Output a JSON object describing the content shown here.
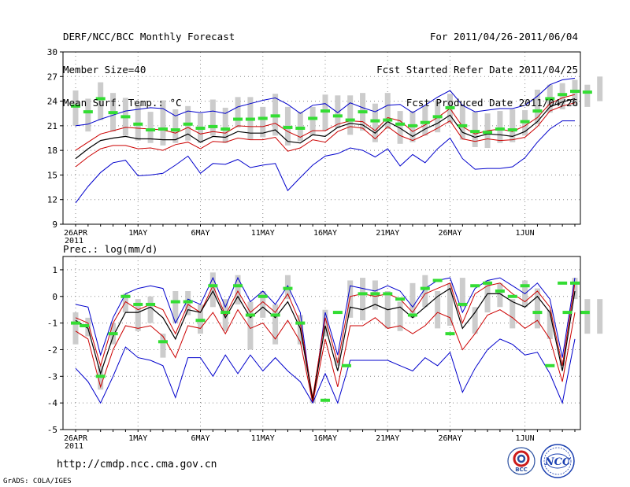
{
  "header": {
    "left": [
      "DERF/NCC/BCC Monthly Forecast",
      "Member Size=40",
      "Mean Surf. Temp.: °C"
    ],
    "right": [
      "For 2011/04/26-2011/06/04",
      "Fcst Started Refer Date 2011/04/25",
      "Fcst Produced Date 2011/04/26"
    ]
  },
  "footer": {
    "url": "http://cmdp.ncc.cma.gov.cn",
    "credit": "GrADS: COLA/IGES",
    "logo_bcc": "BCC",
    "logo_ncc": "NCC"
  },
  "colors": {
    "max_min": "#0000cc",
    "mean": "#000000",
    "std": "#cc0000",
    "observed": "#33dd33",
    "box": "#cccccc",
    "grid": "#888888"
  },
  "chart_data": [
    {
      "type": "line",
      "title": "Mean Surf. Temp.: °C",
      "ylim": [
        9,
        30
      ],
      "yticks": [
        9,
        12,
        15,
        18,
        21,
        24,
        27,
        30
      ],
      "x_tick_labels": [
        {
          "day": 0,
          "label": "26APR",
          "sub": "2011"
        },
        {
          "day": 5,
          "label": "1MAY"
        },
        {
          "day": 10,
          "label": "6MAY"
        },
        {
          "day": 15,
          "label": "11MAY"
        },
        {
          "day": 20,
          "label": "16MAY"
        },
        {
          "day": 25,
          "label": "21MAY"
        },
        {
          "day": 30,
          "label": "26MAY"
        },
        {
          "day": 36,
          "label": "1JUN"
        }
      ],
      "days": 40,
      "series": [
        {
          "name": "max",
          "values": [
            21.0,
            21.2,
            21.8,
            22.3,
            22.8,
            23.0,
            23.2,
            23.1,
            22.2,
            22.8,
            22.6,
            22.8,
            22.5,
            23.3,
            23.7,
            24.1,
            24.4,
            23.6,
            22.5,
            23.5,
            23.7,
            22.6,
            23.8,
            23.2,
            22.7,
            23.5,
            23.6,
            22.6,
            23.5,
            24.5,
            25.3,
            23.5,
            22.7,
            22.9,
            23.1,
            23.1,
            23.5,
            24.6,
            26.0,
            26.6,
            26.8,
            27.2,
            27.9
          ]
        },
        {
          "name": "std_hi",
          "values": [
            18.0,
            19.0,
            20.0,
            20.4,
            20.8,
            20.7,
            20.6,
            20.5,
            20.1,
            20.8,
            20.0,
            20.3,
            20.1,
            21.0,
            20.9,
            20.9,
            21.3,
            20.3,
            19.6,
            20.4,
            20.4,
            21.2,
            21.6,
            21.5,
            20.4,
            22.0,
            21.6,
            20.3,
            21.1,
            22.0,
            23.1,
            20.9,
            20.0,
            20.4,
            20.6,
            20.3,
            21.0,
            22.0,
            23.7,
            24.4,
            24.8,
            24.9,
            25.6
          ]
        },
        {
          "name": "mean",
          "values": [
            17.0,
            18.2,
            19.2,
            19.5,
            19.7,
            19.4,
            19.4,
            19.3,
            19.3,
            20.0,
            19.0,
            19.7,
            19.6,
            20.3,
            20.1,
            20.1,
            20.5,
            19.1,
            18.9,
            19.9,
            19.7,
            20.8,
            21.3,
            21.1,
            20.1,
            21.5,
            20.7,
            19.7,
            20.6,
            21.3,
            22.3,
            20.2,
            19.6,
            20.0,
            19.9,
            19.7,
            20.3,
            21.5,
            23.3,
            23.9,
            24.3,
            24.2,
            25.0
          ]
        },
        {
          "name": "std_lo",
          "values": [
            16.0,
            17.2,
            18.2,
            18.6,
            18.6,
            18.2,
            18.3,
            18.0,
            18.7,
            19.0,
            18.2,
            19.1,
            19.0,
            19.5,
            19.3,
            19.3,
            19.6,
            17.9,
            18.3,
            19.3,
            19.0,
            20.3,
            20.9,
            20.7,
            19.4,
            20.9,
            19.8,
            19.2,
            19.9,
            20.7,
            21.6,
            19.4,
            19.1,
            19.4,
            19.2,
            19.3,
            19.6,
            20.9,
            22.8,
            23.4,
            23.8,
            23.4,
            24.3
          ]
        },
        {
          "name": "min",
          "values": [
            11.6,
            13.6,
            15.3,
            16.5,
            16.8,
            14.9,
            15.0,
            15.2,
            16.2,
            17.3,
            15.2,
            16.4,
            16.3,
            16.9,
            15.9,
            16.2,
            16.4,
            13.1,
            14.7,
            16.2,
            17.3,
            17.6,
            18.3,
            18.0,
            17.2,
            18.2,
            16.1,
            17.5,
            16.5,
            18.2,
            19.5,
            17.0,
            15.7,
            15.8,
            15.8,
            16.0,
            17.1,
            19.0,
            20.6,
            21.6,
            21.6,
            21.3,
            21.9
          ]
        },
        {
          "name": "observed",
          "values": [
            23.4,
            22.7,
            24.3,
            22.6,
            22.1,
            21.2,
            20.5,
            20.6,
            20.5,
            21.2,
            20.7,
            20.9,
            20.6,
            21.8,
            21.8,
            21.9,
            22.2,
            20.8,
            20.7,
            21.9,
            22.8,
            22.2,
            21.7,
            22.7,
            21.6,
            21.7,
            21.2,
            21.0,
            21.4,
            22.1,
            23.2,
            21.0,
            20.3,
            20.2,
            20.6,
            20.5,
            21.5,
            22.8,
            24.3,
            24.8,
            25.2,
            25.1,
            25.8
          ]
        }
      ],
      "boxes": [
        [
          21.0,
          25.3
        ],
        [
          20.3,
          24.3
        ],
        [
          21.7,
          26.3
        ],
        [
          20.3,
          25.0
        ],
        [
          19.8,
          24.4
        ],
        [
          19.2,
          23.6
        ],
        [
          18.9,
          22.7
        ],
        [
          18.6,
          24.1
        ],
        [
          18.9,
          23.0
        ],
        [
          19.2,
          23.4
        ],
        [
          18.9,
          22.5
        ],
        [
          19.8,
          24.2
        ],
        [
          18.9,
          23.2
        ],
        [
          20.8,
          24.5
        ],
        [
          19.3,
          24.5
        ],
        [
          19.6,
          23.3
        ],
        [
          19.8,
          24.9
        ],
        [
          18.6,
          23.3
        ],
        [
          19.1,
          22.7
        ],
        [
          19.8,
          23.3
        ],
        [
          20.4,
          24.8
        ],
        [
          20.7,
          24.7
        ],
        [
          19.9,
          24.7
        ],
        [
          20.4,
          25.0
        ],
        [
          19.0,
          23.7
        ],
        [
          20.6,
          25.0
        ],
        [
          18.8,
          22.8
        ],
        [
          19.0,
          22.8
        ],
        [
          19.8,
          23.5
        ],
        [
          20.2,
          24.1
        ],
        [
          21.3,
          24.9
        ],
        [
          19.3,
          23.5
        ],
        [
          18.4,
          22.7
        ],
        [
          18.3,
          22.5
        ],
        [
          18.9,
          22.8
        ],
        [
          19.0,
          23.0
        ],
        [
          19.8,
          22.9
        ],
        [
          21.2,
          25.4
        ],
        [
          22.6,
          26.0
        ],
        [
          23.0,
          26.2
        ],
        [
          23.4,
          26.6
        ],
        [
          23.3,
          26.0
        ],
        [
          24.0,
          27.0
        ]
      ]
    },
    {
      "type": "line",
      "title": "Prec.: log(mm/d)",
      "ylim": [
        -5,
        1.5
      ],
      "yticks": [
        -5,
        -4,
        -3,
        -2,
        -1,
        0,
        1
      ],
      "x_tick_labels": [
        {
          "day": 0,
          "label": "26APR",
          "sub": "2011"
        },
        {
          "day": 5,
          "label": "1MAY"
        },
        {
          "day": 10,
          "label": "6MAY"
        },
        {
          "day": 15,
          "label": "11MAY"
        },
        {
          "day": 20,
          "label": "16MAY"
        },
        {
          "day": 25,
          "label": "21MAY"
        },
        {
          "day": 30,
          "label": "26MAY"
        },
        {
          "day": 36,
          "label": "1JUN"
        }
      ],
      "days": 40,
      "series": [
        {
          "name": "max",
          "values": [
            -0.3,
            -0.4,
            -2.2,
            -0.8,
            0.1,
            0.3,
            0.4,
            0.3,
            -1.0,
            -0.1,
            -0.3,
            0.7,
            -0.4,
            0.7,
            -0.2,
            0.2,
            -0.3,
            0.4,
            -0.6,
            -4.0,
            -0.6,
            -2.2,
            0.4,
            0.3,
            0.2,
            0.4,
            0.2,
            -0.4,
            0.3,
            0.6,
            0.7,
            -0.6,
            0.3,
            0.6,
            0.7,
            0.4,
            0.1,
            0.5,
            -0.1,
            -2.3,
            0.7,
            -0.3,
            0.6
          ]
        },
        {
          "name": "std_hi",
          "values": [
            -0.8,
            -1.0,
            -2.6,
            -1.0,
            -0.2,
            -0.5,
            -0.3,
            -0.5,
            -1.4,
            -0.3,
            -0.6,
            0.4,
            -0.7,
            0.2,
            -0.6,
            -0.2,
            -0.6,
            0.1,
            -1.0,
            -3.8,
            -0.8,
            -2.5,
            0.0,
            0.1,
            0.0,
            0.1,
            -0.1,
            -0.6,
            0.1,
            0.3,
            0.5,
            -1.0,
            0.1,
            0.4,
            0.5,
            0.1,
            -0.2,
            0.2,
            -0.4,
            -2.6,
            0.5,
            -0.5,
            0.3
          ]
        },
        {
          "name": "mean",
          "values": [
            -0.9,
            -1.2,
            -2.9,
            -1.5,
            -0.6,
            -0.6,
            -0.4,
            -0.8,
            -1.6,
            -0.5,
            -0.6,
            0.2,
            -0.8,
            0.0,
            -0.8,
            -0.4,
            -0.8,
            -0.2,
            -1.2,
            -3.9,
            -1.1,
            -2.8,
            -0.4,
            -0.5,
            -0.3,
            -0.5,
            -0.4,
            -0.8,
            -0.4,
            0.0,
            0.3,
            -1.2,
            -0.6,
            0.1,
            0.1,
            -0.2,
            -0.4,
            0.0,
            -0.6,
            -2.8,
            0.2,
            -0.7,
            0.0
          ]
        },
        {
          "name": "std_lo",
          "values": [
            -1.3,
            -1.6,
            -3.4,
            -2.0,
            -1.1,
            -1.2,
            -1.1,
            -1.5,
            -2.3,
            -1.1,
            -1.2,
            -0.6,
            -1.4,
            -0.5,
            -1.2,
            -1.0,
            -1.6,
            -0.9,
            -1.7,
            -4.0,
            -1.6,
            -3.4,
            -1.1,
            -1.1,
            -0.8,
            -1.2,
            -1.1,
            -1.4,
            -1.1,
            -0.6,
            -0.8,
            -2.0,
            -1.4,
            -0.7,
            -0.5,
            -0.8,
            -1.2,
            -0.9,
            -1.6,
            -3.2,
            -0.6,
            -1.2,
            -1.4
          ]
        },
        {
          "name": "min",
          "values": [
            -2.7,
            -3.2,
            -4.0,
            -3.0,
            -1.9,
            -2.3,
            -2.4,
            -2.6,
            -3.8,
            -2.3,
            -2.3,
            -3.0,
            -2.2,
            -2.9,
            -2.2,
            -2.8,
            -2.3,
            -2.8,
            -3.2,
            -4.0,
            -2.9,
            -4.0,
            -2.4,
            -2.4,
            -2.4,
            -2.4,
            -2.6,
            -2.8,
            -2.3,
            -2.6,
            -2.1,
            -3.6,
            -2.7,
            -2.0,
            -1.6,
            -1.8,
            -2.2,
            -2.1,
            -2.9,
            -4.0,
            -1.6,
            -1.8,
            -2.4
          ]
        },
        {
          "name": "observed",
          "values": [
            -1.0,
            -1.1,
            -3.0,
            -1.4,
            0.0,
            -0.3,
            -0.3,
            -1.7,
            -0.2,
            -0.2,
            -0.9,
            0.4,
            -0.6,
            0.4,
            -0.7,
            0.0,
            -0.7,
            0.3,
            -1.0,
            -3.9,
            -0.6,
            -2.6,
            0.1,
            0.1,
            0.1,
            -0.1,
            -0.7,
            0.3,
            0.6,
            -1.4,
            -0.3,
            0.4,
            0.5,
            0.2,
            0.0,
            0.4,
            -0.6,
            -2.6,
            0.5,
            -0.6,
            0.5,
            -0.6,
            -0.6
          ]
        },
        {
          "name": "obs_days",
          "values": [
            0,
            0.7,
            2,
            3,
            4,
            5,
            6,
            7,
            8,
            9,
            10,
            11,
            12,
            13,
            14,
            15,
            16,
            17,
            18,
            20,
            21,
            21.7,
            23,
            24,
            25,
            26,
            27,
            28,
            29,
            30,
            31,
            32,
            33,
            34,
            35,
            36,
            37,
            38,
            39,
            39.4,
            40,
            40.8,
            40.8
          ]
        }
      ],
      "boxes": [
        [
          -1.8,
          -0.6
        ],
        [
          -1.5,
          -0.8
        ],
        [
          -3.5,
          -2.6
        ],
        [
          -1.8,
          -1.0
        ],
        [
          -0.6,
          0.1
        ],
        [
          -1.3,
          -0.1
        ],
        [
          -1.0,
          0.0
        ],
        [
          -2.3,
          -1.4
        ],
        [
          -1.0,
          0.2
        ],
        [
          -0.7,
          0.2
        ],
        [
          -1.4,
          -0.3
        ],
        [
          -0.4,
          0.9
        ],
        [
          -1.3,
          -0.1
        ],
        [
          -0.3,
          0.8
        ],
        [
          -2.0,
          -0.2
        ],
        [
          -0.8,
          0.2
        ],
        [
          -1.8,
          -0.3
        ],
        [
          -0.1,
          0.8
        ],
        [
          -1.8,
          -0.7
        ],
        [
          -4.0,
          -3.8
        ],
        [
          -1.5,
          -0.5
        ],
        [
          -2.6,
          -2.3
        ],
        [
          -0.8,
          0.6
        ],
        [
          -0.9,
          0.7
        ],
        [
          -0.5,
          0.6
        ],
        [
          -1.2,
          0.2
        ],
        [
          -1.3,
          -0.2
        ],
        [
          -0.8,
          0.5
        ],
        [
          -0.4,
          0.8
        ],
        [
          -1.2,
          0.2
        ],
        [
          -1.1,
          0.5
        ],
        [
          -0.4,
          0.7
        ],
        [
          -1.4,
          -0.4
        ],
        [
          -0.6,
          0.6
        ],
        [
          -0.4,
          0.5
        ],
        [
          -1.2,
          -0.1
        ],
        [
          -0.4,
          0.6
        ],
        [
          -1.2,
          0.3
        ],
        [
          -1.6,
          -0.5
        ],
        [
          -2.6,
          -2.4
        ],
        [
          -0.1,
          0.7
        ],
        [
          -1.4,
          -0.1
        ],
        [
          -1.4,
          -0.1
        ]
      ]
    }
  ]
}
